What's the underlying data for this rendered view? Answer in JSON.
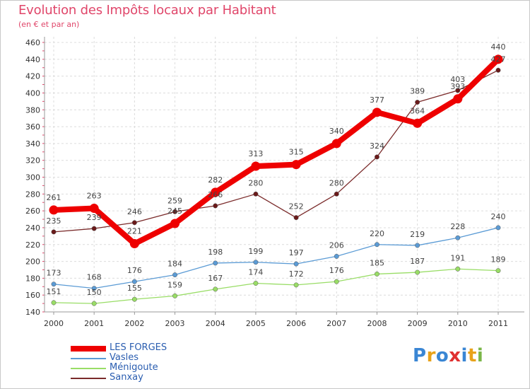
{
  "chart_data": {
    "type": "line",
    "title": "Evolution des Impôts locaux par Habitant",
    "subtitle": "(en € et par an)",
    "xlabel": "",
    "ylabel": "",
    "ylim": [
      140,
      460
    ],
    "yticks": [
      140,
      160,
      180,
      200,
      220,
      240,
      260,
      280,
      300,
      320,
      340,
      360,
      380,
      400,
      420,
      440,
      460
    ],
    "categories": [
      "2000",
      "2001",
      "2002",
      "2003",
      "2004",
      "2005",
      "2006",
      "2007",
      "2008",
      "2009",
      "2010",
      "2011"
    ],
    "series": [
      {
        "name": "LES FORGES",
        "color": "#ee0000",
        "values": [
          261,
          263,
          221,
          245,
          282,
          313,
          315,
          340,
          377,
          364,
          393,
          440
        ]
      },
      {
        "name": "Vasles",
        "color": "#5b9bd5",
        "values": [
          173,
          168,
          176,
          184,
          198,
          199,
          197,
          206,
          220,
          219,
          228,
          240
        ]
      },
      {
        "name": "Ménigoute",
        "color": "#99dd66",
        "values": [
          151,
          150,
          155,
          159,
          167,
          174,
          172,
          176,
          185,
          187,
          191,
          189
        ]
      },
      {
        "name": "Sanxay",
        "color": "#7a2a2a",
        "values": [
          235,
          239,
          246,
          259,
          266,
          280,
          252,
          280,
          324,
          389,
          403,
          427
        ]
      }
    ],
    "legend_position": "bottom-left",
    "grid": true
  },
  "logo": {
    "letters": [
      "P",
      "r",
      "o",
      "x",
      "i",
      "t",
      "i"
    ],
    "colors": [
      "#3a86d4",
      "#e8a21a",
      "#3a86d4",
      "#e03030",
      "#3a86d4",
      "#e8a21a",
      "#7ab648"
    ]
  }
}
